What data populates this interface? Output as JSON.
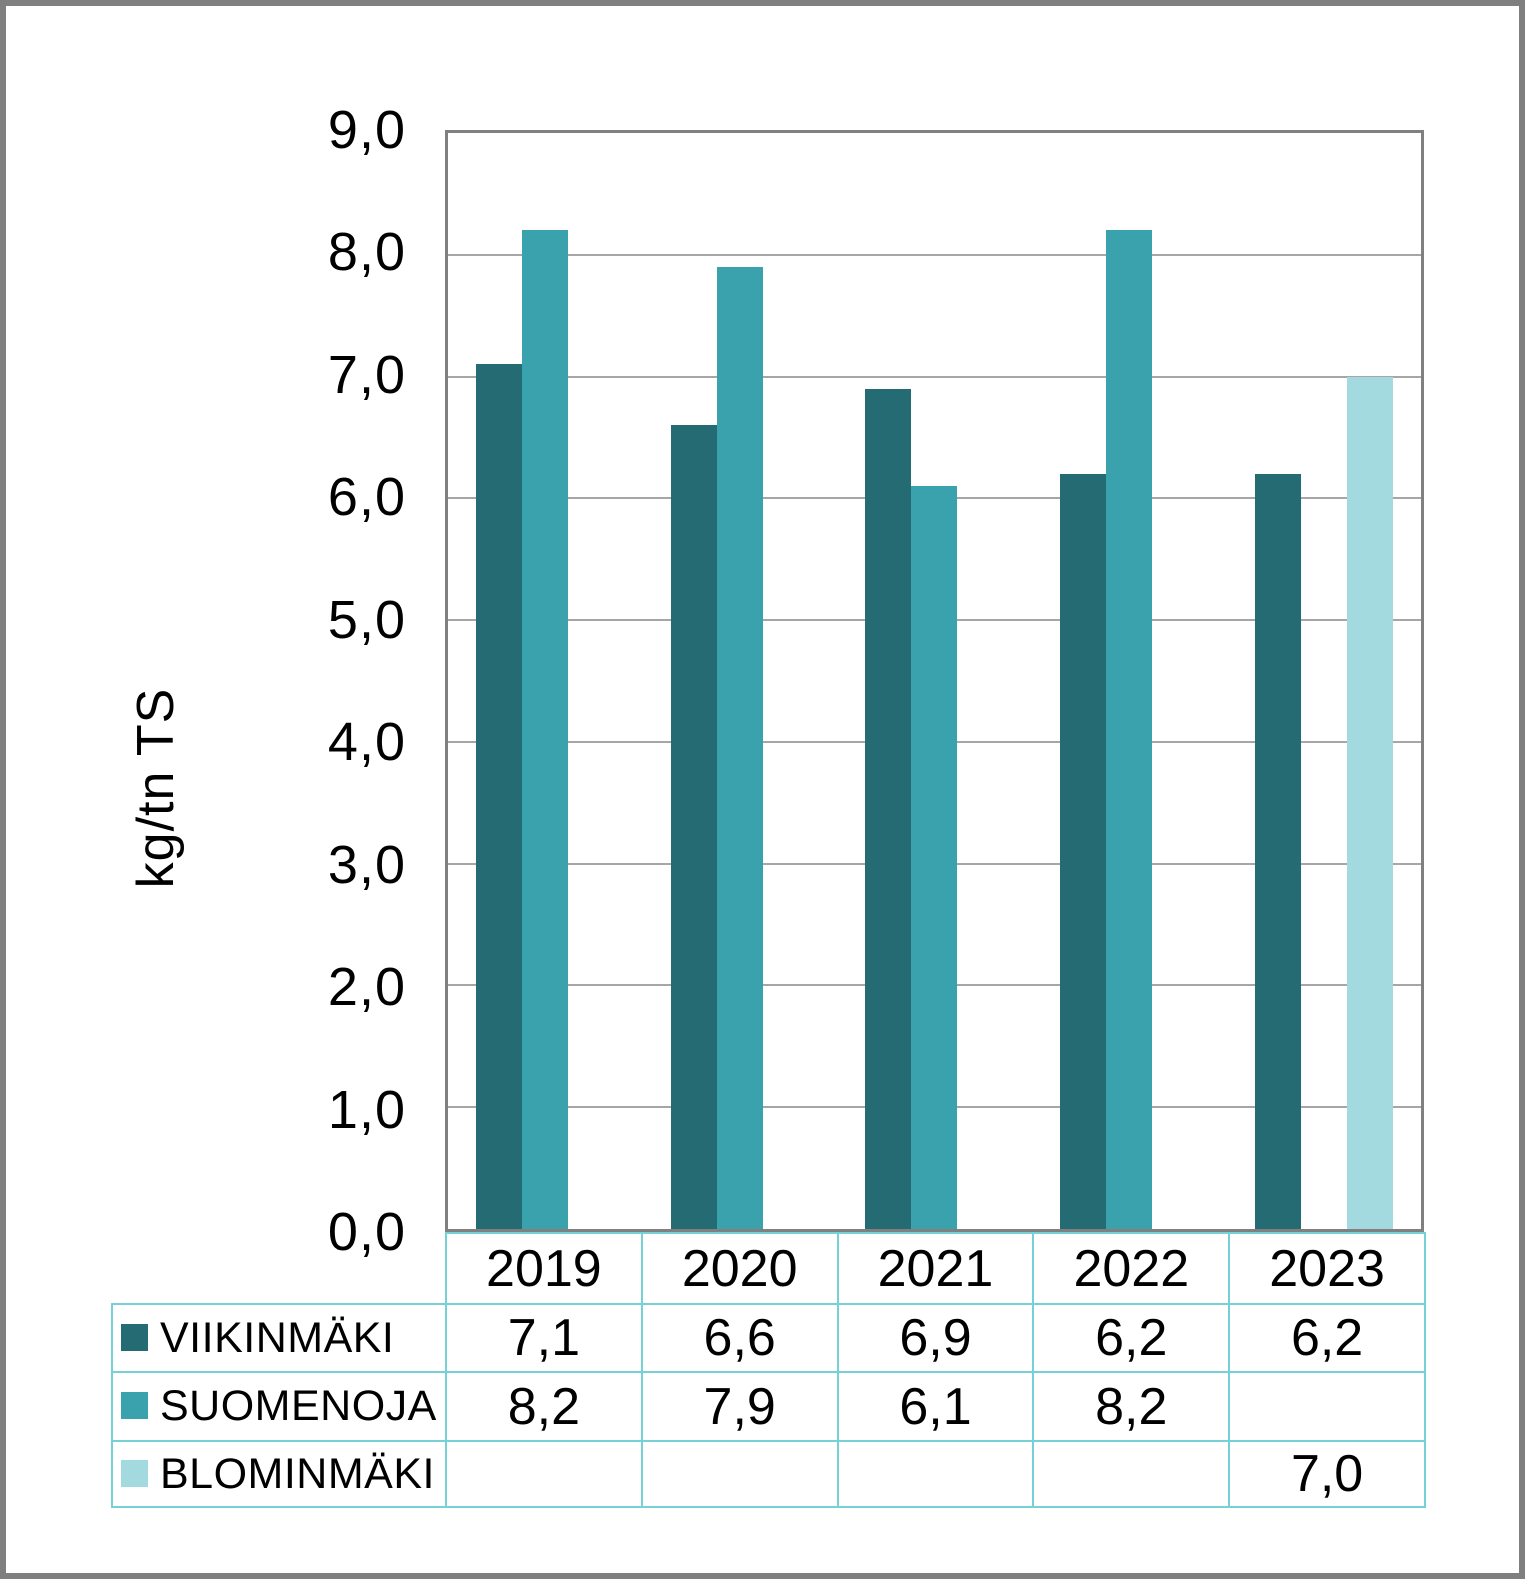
{
  "figure": {
    "description": "Clustered column chart with attached data table",
    "y_axis_title": "kg/tn TS"
  },
  "chart_data": {
    "type": "bar",
    "title": "",
    "xlabel": "",
    "ylabel": "kg/tn TS",
    "ylim": [
      0,
      9
    ],
    "ytick_step": 1.0,
    "ytick_labels_bottom_up": [
      "0,0",
      "1,0",
      "2,0",
      "3,0",
      "4,0",
      "5,0",
      "6,0",
      "7,0",
      "8,0",
      "9,0"
    ],
    "grid": "horizontal-gridlines-on",
    "legend_position": "data-table-row-headers",
    "categories": [
      "2019",
      "2020",
      "2021",
      "2022",
      "2023"
    ],
    "series": [
      {
        "name": "VIIKINMÄKI",
        "color": "#256b74",
        "values": [
          7.1,
          6.6,
          6.9,
          6.2,
          6.2
        ],
        "value_labels": [
          "7,1",
          "6,6",
          "6,9",
          "6,2",
          "6,2"
        ]
      },
      {
        "name": "SUOMENOJA",
        "color": "#3aa2ad",
        "values": [
          8.2,
          7.9,
          6.1,
          8.2,
          null
        ],
        "value_labels": [
          "8,2",
          "7,9",
          "6,1",
          "8,2",
          ""
        ]
      },
      {
        "name": "BLOMINMÄKI",
        "color": "#a3dae0",
        "values": [
          null,
          null,
          null,
          null,
          7.0
        ],
        "value_labels": [
          "",
          "",
          "",
          "",
          "7,0"
        ]
      }
    ],
    "colors": {
      "plot_border": "#808080",
      "gridline": "#a6a6a6",
      "table_border": "#76d1d6",
      "outer_frame": "#7f7f7f",
      "text": "#000000"
    }
  }
}
